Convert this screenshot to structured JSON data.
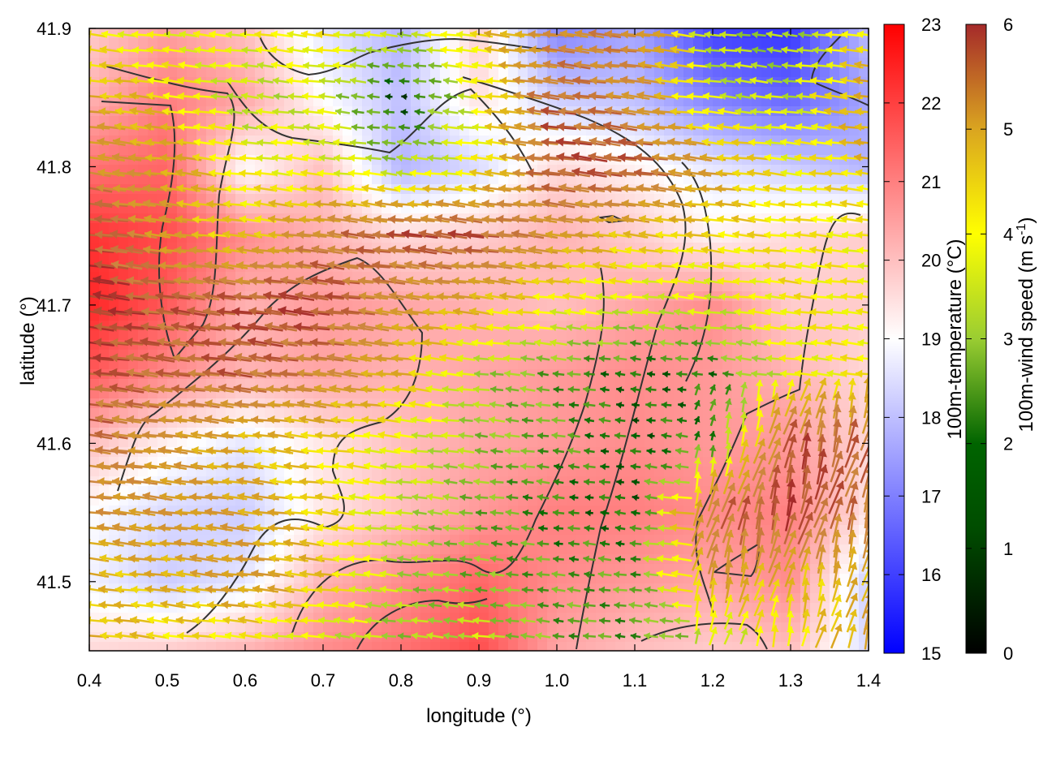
{
  "chart_data": {
    "type": "heatmap",
    "xlabel": "longitude (°)",
    "ylabel": "latitude (°)",
    "xlim": [
      0.4,
      1.4
    ],
    "ylim": [
      41.45,
      41.9
    ],
    "xticks": [
      "0.4",
      "0.5",
      "0.6",
      "0.7",
      "0.8",
      "0.9",
      "1.0",
      "1.1",
      "1.2",
      "1.3",
      "1.4"
    ],
    "yticks": [
      "41.5",
      "41.6",
      "41.7",
      "41.8",
      "41.9"
    ],
    "temperature_colorbar": {
      "label": "100m-temperature (°C)",
      "range": [
        15,
        23
      ],
      "ticks": [
        "15",
        "16",
        "17",
        "18",
        "19",
        "20",
        "21",
        "22",
        "23"
      ],
      "colors": [
        "#0000ff",
        "#ffffff",
        "#ff0000"
      ]
    },
    "wind_colorbar": {
      "label": "100m-wind speed (m s",
      "label_sup": "-1",
      "label_end": ")",
      "range": [
        0,
        6
      ],
      "ticks": [
        "0",
        "1",
        "2",
        "3",
        "4",
        "5",
        "6"
      ],
      "colors": [
        "#000000",
        "#006400",
        "#9acd32",
        "#ffff00",
        "#daa520",
        "#cd853f",
        "#a52a2a"
      ]
    },
    "temperature_field": {
      "lon": [
        0.4,
        0.5,
        0.6,
        0.7,
        0.8,
        0.9,
        1.0,
        1.1,
        1.2,
        1.3,
        1.4
      ],
      "lat": [
        41.9,
        41.85,
        41.8,
        41.75,
        41.7,
        41.65,
        41.6,
        41.55,
        41.5,
        41.45
      ],
      "values": [
        [
          19.8,
          20.5,
          20.0,
          18.6,
          17.8,
          19.8,
          17.0,
          17.6,
          16.0,
          15.8,
          18.0
        ],
        [
          20.2,
          21.0,
          20.4,
          19.0,
          18.0,
          19.5,
          18.2,
          18.0,
          17.0,
          16.6,
          17.6
        ],
        [
          21.2,
          21.4,
          19.0,
          20.0,
          17.8,
          18.4,
          19.6,
          19.2,
          18.6,
          18.2,
          17.8
        ],
        [
          22.2,
          21.8,
          20.8,
          20.2,
          19.6,
          19.8,
          20.2,
          19.8,
          19.2,
          19.6,
          19.8
        ],
        [
          22.4,
          21.6,
          20.2,
          20.6,
          20.4,
          20.2,
          20.0,
          20.4,
          20.8,
          19.8,
          19.8
        ],
        [
          21.6,
          20.8,
          20.2,
          20.4,
          20.2,
          20.4,
          20.6,
          20.8,
          20.6,
          20.2,
          19.6
        ],
        [
          20.0,
          19.2,
          18.6,
          19.4,
          20.0,
          20.4,
          20.6,
          20.8,
          20.6,
          20.6,
          19.6
        ],
        [
          19.0,
          18.4,
          18.2,
          19.4,
          20.0,
          20.6,
          21.0,
          21.0,
          20.8,
          21.0,
          19.4
        ],
        [
          18.8,
          18.2,
          18.6,
          20.2,
          20.8,
          21.4,
          20.8,
          20.6,
          20.4,
          20.8,
          18.2
        ],
        [
          19.6,
          19.8,
          20.2,
          20.8,
          21.2,
          21.8,
          20.4,
          20.0,
          19.8,
          20.0,
          18.4
        ]
      ]
    },
    "wind_field": {
      "lon": [
        0.4,
        0.5,
        0.6,
        0.7,
        0.8,
        0.9,
        1.0,
        1.1,
        1.2,
        1.3,
        1.4
      ],
      "lat": [
        41.9,
        41.85,
        41.8,
        41.75,
        41.7,
        41.65,
        41.6,
        41.55,
        41.5,
        41.45
      ],
      "speed": [
        [
          3.0,
          2.8,
          3.0,
          3.2,
          2.4,
          3.4,
          4.6,
          5.0,
          2.2,
          2.0,
          3.2
        ],
        [
          4.0,
          3.4,
          2.2,
          2.6,
          0.6,
          2.8,
          5.4,
          4.6,
          2.6,
          2.4,
          4.2
        ],
        [
          4.6,
          4.2,
          3.0,
          2.8,
          2.2,
          3.0,
          5.6,
          5.6,
          4.2,
          3.0,
          3.6
        ],
        [
          5.8,
          4.2,
          3.4,
          4.8,
          5.6,
          5.6,
          4.4,
          3.6,
          3.4,
          3.2,
          3.0
        ],
        [
          6.0,
          5.4,
          5.6,
          5.8,
          4.4,
          3.8,
          3.0,
          2.6,
          2.6,
          3.2,
          3.0
        ],
        [
          5.6,
          5.2,
          5.4,
          4.8,
          3.8,
          2.2,
          1.6,
          1.0,
          1.2,
          2.8,
          3.2
        ],
        [
          5.2,
          4.4,
          3.8,
          3.4,
          2.8,
          2.0,
          1.6,
          1.0,
          1.4,
          5.6,
          5.4
        ],
        [
          4.6,
          4.4,
          4.2,
          3.4,
          2.4,
          1.8,
          1.2,
          1.0,
          5.2,
          5.8,
          5.0
        ],
        [
          3.6,
          3.8,
          4.4,
          3.6,
          2.2,
          1.8,
          1.6,
          1.6,
          4.2,
          3.6,
          3.8
        ],
        [
          4.0,
          3.2,
          2.8,
          2.4,
          2.0,
          2.6,
          1.6,
          1.4,
          2.0,
          3.0,
          4.4
        ]
      ],
      "direction": "westward flow, turning north-eastward on the eastern side"
    },
    "contour_color": "#333333"
  }
}
